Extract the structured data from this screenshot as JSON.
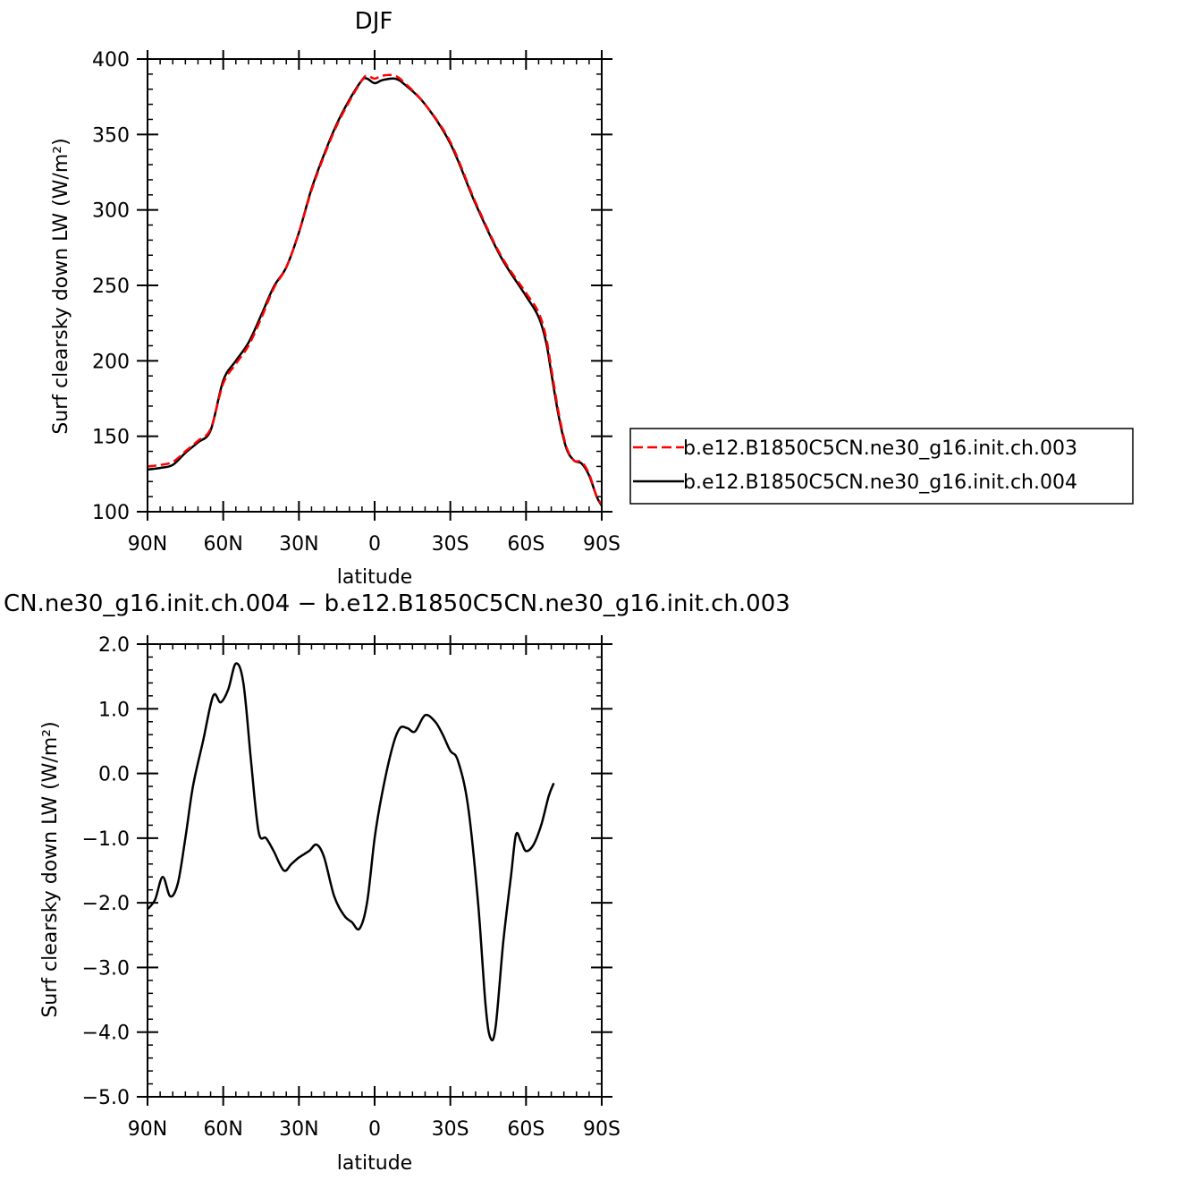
{
  "chart_data": [
    {
      "type": "line",
      "title": "DJF",
      "xlabel": "latitude",
      "ylabel": "Surf clearsky down LW (W/m²)",
      "xlim": [
        90,
        -90
      ],
      "ylim": [
        100,
        400
      ],
      "x_ticks": [
        {
          "value": 90,
          "label": "90N"
        },
        {
          "value": 60,
          "label": "60N"
        },
        {
          "value": 30,
          "label": "30N"
        },
        {
          "value": 0,
          "label": "0"
        },
        {
          "value": -30,
          "label": "30S"
        },
        {
          "value": -60,
          "label": "60S"
        },
        {
          "value": -90,
          "label": "90S"
        }
      ],
      "y_ticks": [
        {
          "value": 400,
          "label": "400"
        },
        {
          "value": 350,
          "label": "350"
        },
        {
          "value": 300,
          "label": "300"
        },
        {
          "value": 250,
          "label": "250"
        },
        {
          "value": 200,
          "label": "200"
        },
        {
          "value": 150,
          "label": "150"
        },
        {
          "value": 100,
          "label": "100"
        }
      ],
      "legend_position": "right",
      "series": [
        {
          "name": "b.e12.B1850C5CN.ne30_g16.init.ch.003",
          "color": "#ff0000",
          "dash": "dashed",
          "points": [
            [
              90,
              130
            ],
            [
              85,
              131
            ],
            [
              80,
              133
            ],
            [
              75,
              140
            ],
            [
              70,
              147
            ],
            [
              65,
              155
            ],
            [
              60,
              185
            ],
            [
              55,
              198
            ],
            [
              50,
              210
            ],
            [
              45,
              228
            ],
            [
              40,
              248
            ],
            [
              35,
              262
            ],
            [
              30,
              285
            ],
            [
              25,
              313
            ],
            [
              20,
              336
            ],
            [
              15,
              356
            ],
            [
              10,
              372
            ],
            [
              5,
              386
            ],
            [
              3,
              389
            ],
            [
              0,
              387
            ],
            [
              -3,
              389
            ],
            [
              -8,
              389
            ],
            [
              -12,
              384
            ],
            [
              -20,
              370
            ],
            [
              -30,
              345
            ],
            [
              -40,
              305
            ],
            [
              -50,
              270
            ],
            [
              -60,
              245
            ],
            [
              -65,
              232
            ],
            [
              -68,
              215
            ],
            [
              -70,
              195
            ],
            [
              -73,
              165
            ],
            [
              -76,
              143
            ],
            [
              -79,
              134
            ],
            [
              -82,
              133
            ],
            [
              -85,
              125
            ],
            [
              -88,
              110
            ],
            [
              -90,
              105
            ]
          ]
        },
        {
          "name": "b.e12.B1850C5CN.ne30_g16.init.ch.004",
          "color": "#000000",
          "dash": "solid",
          "points": [
            [
              90,
              128
            ],
            [
              85,
              129
            ],
            [
              80,
              131
            ],
            [
              75,
              139
            ],
            [
              70,
              146
            ],
            [
              65,
              154
            ],
            [
              60,
              187
            ],
            [
              55,
              200
            ],
            [
              50,
              212
            ],
            [
              45,
              230
            ],
            [
              40,
              249
            ],
            [
              35,
              262
            ],
            [
              30,
              285
            ],
            [
              25,
              314
            ],
            [
              20,
              337
            ],
            [
              15,
              357
            ],
            [
              10,
              373
            ],
            [
              5,
              386
            ],
            [
              3,
              387
            ],
            [
              0,
              384
            ],
            [
              -3,
              386
            ],
            [
              -8,
              387
            ],
            [
              -12,
              383
            ],
            [
              -20,
              370
            ],
            [
              -30,
              344
            ],
            [
              -40,
              304
            ],
            [
              -50,
              269
            ],
            [
              -60,
              243
            ],
            [
              -65,
              229
            ],
            [
              -68,
              212
            ],
            [
              -70,
              192
            ],
            [
              -73,
              163
            ],
            [
              -76,
              142
            ],
            [
              -79,
              134
            ],
            [
              -82,
              132
            ],
            [
              -85,
              124
            ],
            [
              -88,
              110
            ],
            [
              -90,
              104
            ]
          ]
        }
      ]
    },
    {
      "type": "line",
      "title": "CN.ne30_g16.init.ch.004 − b.e12.B1850C5CN.ne30_g16.init.ch.003",
      "xlabel": "latitude",
      "ylabel": "Surf clearsky down LW (W/m²)",
      "xlim": [
        90,
        -90
      ],
      "ylim": [
        -5,
        2
      ],
      "x_ticks": [
        {
          "value": 90,
          "label": "90N"
        },
        {
          "value": 60,
          "label": "60N"
        },
        {
          "value": 30,
          "label": "30N"
        },
        {
          "value": 0,
          "label": "0"
        },
        {
          "value": -30,
          "label": "30S"
        },
        {
          "value": -60,
          "label": "60S"
        },
        {
          "value": -90,
          "label": "90S"
        }
      ],
      "y_ticks": [
        {
          "value": 2,
          "label": "2.0"
        },
        {
          "value": 1,
          "label": "1.0"
        },
        {
          "value": 0,
          "label": "0.0"
        },
        {
          "value": -1,
          "label": "−1.0"
        },
        {
          "value": -2,
          "label": "−2.0"
        },
        {
          "value": -3,
          "label": "−3.0"
        },
        {
          "value": -4,
          "label": "−4.0"
        },
        {
          "value": -5,
          "label": "−5.0"
        }
      ],
      "series": [
        {
          "color": "#000000",
          "dash": "solid",
          "points": [
            [
              90,
              -2.1
            ],
            [
              87,
              -1.95
            ],
            [
              84,
              -1.6
            ],
            [
              81,
              -1.9
            ],
            [
              78,
              -1.7
            ],
            [
              75,
              -1.0
            ],
            [
              72,
              -0.2
            ],
            [
              68,
              0.5
            ],
            [
              64,
              1.2
            ],
            [
              61,
              1.1
            ],
            [
              58,
              1.3
            ],
            [
              55,
              1.7
            ],
            [
              52,
              1.4
            ],
            [
              49,
              0.2
            ],
            [
              46,
              -0.9
            ],
            [
              43,
              -1.0
            ],
            [
              40,
              -1.2
            ],
            [
              36,
              -1.5
            ],
            [
              33,
              -1.4
            ],
            [
              30,
              -1.3
            ],
            [
              26,
              -1.2
            ],
            [
              23,
              -1.1
            ],
            [
              20,
              -1.3
            ],
            [
              16,
              -1.9
            ],
            [
              12,
              -2.2
            ],
            [
              9,
              -2.3
            ],
            [
              6,
              -2.4
            ],
            [
              3,
              -2.0
            ],
            [
              0,
              -1.0
            ],
            [
              -3,
              -0.3
            ],
            [
              -7,
              0.4
            ],
            [
              -10,
              0.7
            ],
            [
              -13,
              0.7
            ],
            [
              -16,
              0.65
            ],
            [
              -20,
              0.9
            ],
            [
              -24,
              0.8
            ],
            [
              -27,
              0.6
            ],
            [
              -30,
              0.35
            ],
            [
              -33,
              0.2
            ],
            [
              -37,
              -0.5
            ],
            [
              -41,
              -2.0
            ],
            [
              -44,
              -3.6
            ],
            [
              -46,
              -4.1
            ],
            [
              -48,
              -3.9
            ],
            [
              -51,
              -2.6
            ],
            [
              -54,
              -1.6
            ],
            [
              -56,
              -0.95
            ],
            [
              -58,
              -1.05
            ],
            [
              -60,
              -1.2
            ],
            [
              -63,
              -1.1
            ],
            [
              -66,
              -0.8
            ],
            [
              -69,
              -0.35
            ],
            [
              -71,
              -0.15
            ]
          ]
        }
      ]
    }
  ]
}
